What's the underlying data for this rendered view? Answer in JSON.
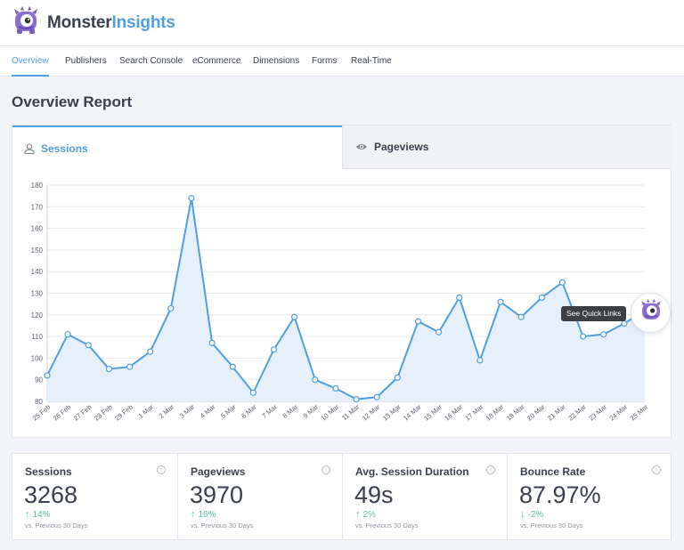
{
  "brand": {
    "name_part1": "Monster",
    "name_part2": "Insights"
  },
  "nav": {
    "items": [
      {
        "label": "Overview",
        "active": true
      },
      {
        "label": "Publishers",
        "active": false
      },
      {
        "label": "Search Console",
        "active": false
      },
      {
        "label": "eCommerce",
        "active": false
      },
      {
        "label": "Dimensions",
        "active": false
      },
      {
        "label": "Forms",
        "active": false
      },
      {
        "label": "Real-Time",
        "active": false
      }
    ]
  },
  "page": {
    "title": "Overview Report"
  },
  "tabs": {
    "sessions": "Sessions",
    "pageviews": "Pageviews"
  },
  "chart_data": {
    "type": "line",
    "x": [
      "25 Feb",
      "26 Feb",
      "27 Feb",
      "28 Feb",
      "29 Feb",
      "1 Mar",
      "2 Mar",
      "3 Mar",
      "4 Mar",
      "5 Mar",
      "6 Mar",
      "7 Mar",
      "8 Mar",
      "9 Mar",
      "10 Mar",
      "11 Mar",
      "12 Mar",
      "13 Mar",
      "14 Mar",
      "15 Mar",
      "16 Mar",
      "17 Mar",
      "18 Mar",
      "19 Mar",
      "20 Mar",
      "21 Mar",
      "22 Mar",
      "23 Mar",
      "24 Mar",
      "25 Mar"
    ],
    "series": [
      {
        "values": [
          92,
          111,
          106,
          95,
          96,
          103,
          123,
          174,
          107,
          96,
          84,
          104,
          119,
          90,
          86,
          81,
          82,
          91,
          117,
          112,
          128,
          99,
          126,
          119,
          128,
          135,
          110,
          111,
          116,
          122
        ]
      }
    ],
    "yticks": [
      80,
      90,
      100,
      110,
      120,
      130,
      140,
      150,
      160,
      170,
      180
    ],
    "ylim": [
      80,
      180
    ],
    "grid": true,
    "color": "#509fe2",
    "fill": "#e5f0fb"
  },
  "quick_links": {
    "tooltip": "See Quick Links"
  },
  "stats": [
    {
      "label": "Sessions",
      "value": "3268",
      "change": "14%",
      "direction": "up",
      "compare": "vs. Previous 30 Days"
    },
    {
      "label": "Pageviews",
      "value": "3970",
      "change": "16%",
      "direction": "up",
      "compare": "vs. Previous 30 Days"
    },
    {
      "label": "Avg. Session Duration",
      "value": "49s",
      "change": "2%",
      "direction": "up",
      "compare": "vs. Previous 30 Days"
    },
    {
      "label": "Bounce Rate",
      "value": "87.97%",
      "change": "-2%",
      "direction": "down",
      "compare": "vs. Previous 30 Days"
    }
  ],
  "colors": {
    "accent": "#509fe2",
    "positive": "#5cc0a7",
    "text": "#393f4c",
    "logo_purple": "#7b5ec3"
  },
  "icons": {
    "logo": "monster-logo-icon",
    "sessions_tab": "user-icon",
    "pageviews_tab": "eye-icon",
    "info": "info-icon",
    "quick_links": "monster-logo-icon"
  }
}
